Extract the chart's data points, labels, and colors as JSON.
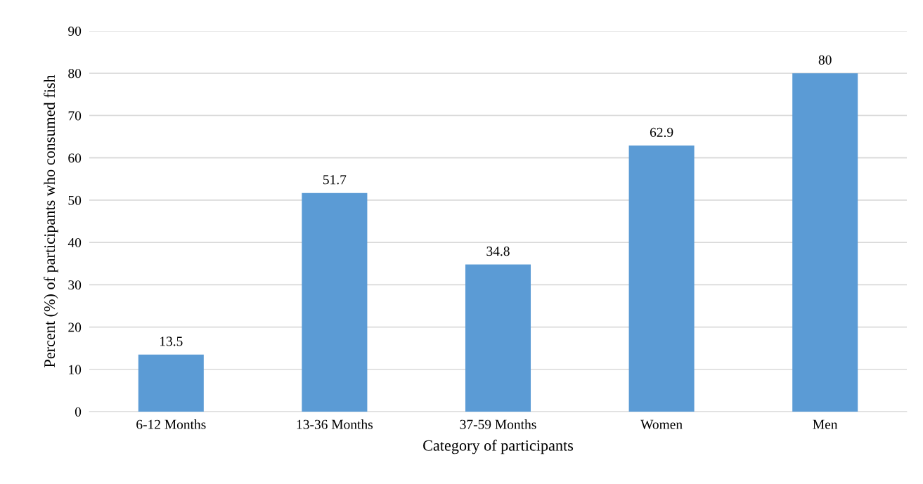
{
  "chart_data": {
    "type": "bar",
    "xlabel": "Category of participants",
    "ylabel": "Percent (%) of participants who consumed fish",
    "categories": [
      "6-12 Months",
      "13-36 Months",
      "37-59 Months",
      "Women",
      "Men"
    ],
    "values": [
      13.5,
      51.7,
      34.8,
      62.9,
      80
    ],
    "color": "#5b9bd5",
    "ylim": [
      0,
      90
    ],
    "yticks": [
      0,
      10,
      20,
      30,
      40,
      50,
      60,
      70,
      80,
      90
    ],
    "grid": "y",
    "data_labels": true
  }
}
